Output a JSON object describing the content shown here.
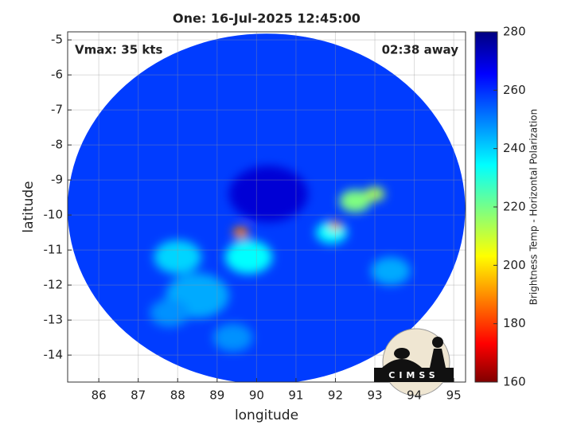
{
  "chart_data": {
    "type": "heatmap",
    "title": "One: 16-Jul-2025 12:45:00",
    "annotations": [
      "Vmax: 35 kts",
      "02:38 away"
    ],
    "xlabel": "longitude",
    "ylabel": "latitude",
    "colorbar_label": "Brightness Temp - Horizontal Polarization",
    "logo_text": "CIMSS",
    "xlim": [
      85.21,
      95.3
    ],
    "ylim": [
      -14.77,
      -4.77
    ],
    "xticks": [
      86,
      87,
      88,
      89,
      90,
      91,
      92,
      93,
      94,
      95
    ],
    "yticks": [
      -14,
      -13,
      -12,
      -11,
      -10,
      -9,
      -8,
      -7,
      -6,
      -5
    ],
    "clim": [
      160,
      280
    ],
    "cticks": [
      160,
      180,
      200,
      220,
      240,
      260,
      280
    ],
    "grid": true,
    "swath": {
      "x": 90.25,
      "y": -9.82,
      "x_radius": 5.04,
      "y_radius": 5.0,
      "value": 258
    },
    "x": [
      90.3,
      89.8,
      88.0,
      88.5,
      87.8,
      89.4,
      91.9,
      93.4,
      92.5,
      93.0,
      89.6,
      92.0
    ],
    "y": [
      -9.4,
      -11.2,
      -11.2,
      -12.3,
      -12.8,
      -13.5,
      -10.5,
      -11.6,
      -9.6,
      -9.4,
      -10.5,
      -10.3
    ],
    "sizes": [
      1.0,
      0.6,
      0.6,
      0.8,
      0.5,
      0.5,
      0.4,
      0.5,
      0.4,
      0.25,
      0.2,
      0.15
    ],
    "values": [
      270,
      235,
      240,
      245,
      248,
      248,
      235,
      245,
      220,
      215,
      190,
      190
    ]
  }
}
